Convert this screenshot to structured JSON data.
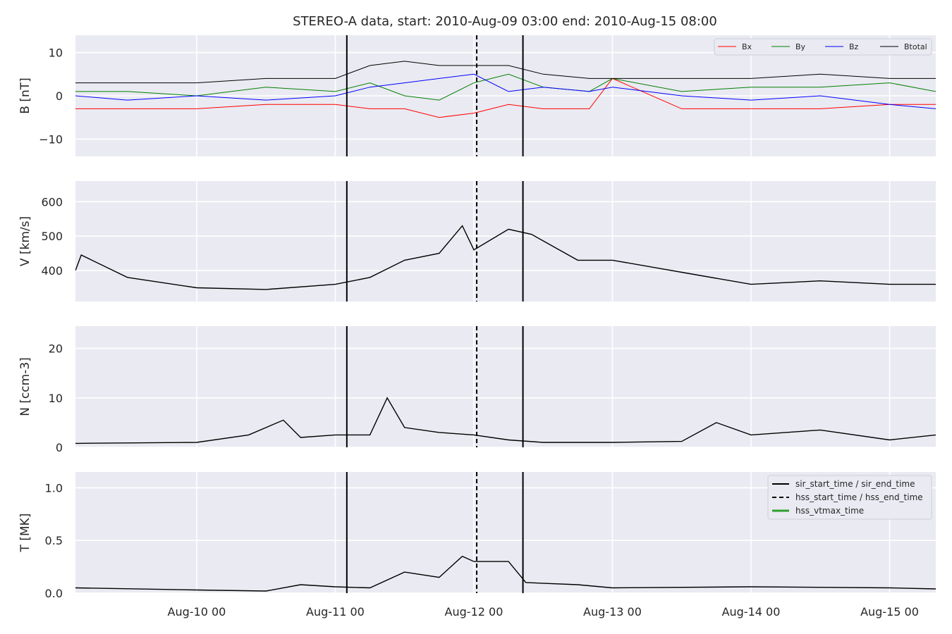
{
  "chart_data": {
    "type": "line",
    "title": "STEREO-A data, start: 2010-Aug-09 03:00  end: 2010-Aug-15 08:00",
    "x_range": [
      "2010-08-09 03:00",
      "2010-08-15 08:00"
    ],
    "x_tick_labels": [
      "Aug-10 00",
      "Aug-11 00",
      "Aug-12 00",
      "Aug-13 00",
      "Aug-14 00",
      "Aug-15 00"
    ],
    "x_ticks": [
      "2010-08-10 00:00",
      "2010-08-11 00:00",
      "2010-08-12 00:00",
      "2010-08-13 00:00",
      "2010-08-14 00:00",
      "2010-08-15 00:00"
    ],
    "grid": true,
    "vertical_markers": [
      {
        "time": "2010-08-11 02:00",
        "style": "solid",
        "legend": "sir_start_time / sir_end_time"
      },
      {
        "time": "2010-08-12 00:30",
        "style": "dashed",
        "legend": "hss_start_time / hss_end_time"
      },
      {
        "time": "2010-08-12 08:30",
        "style": "solid",
        "legend": "sir_start_time / sir_end_time"
      }
    ],
    "panels": [
      {
        "ylabel": "B [nT]",
        "ylim": [
          -14,
          14
        ],
        "yticks": [
          10,
          0,
          -10
        ],
        "ytick_labels": [
          "10",
          "0",
          "−10"
        ],
        "legend_position": "top-right",
        "series": [
          {
            "name": "Bx",
            "color": "#ff0000",
            "x": [
              "2010-08-09 03:00",
              "2010-08-09 12:00",
              "2010-08-10 00:00",
              "2010-08-10 12:00",
              "2010-08-11 00:00",
              "2010-08-11 06:00",
              "2010-08-11 12:00",
              "2010-08-11 18:00",
              "2010-08-12 00:00",
              "2010-08-12 06:00",
              "2010-08-12 12:00",
              "2010-08-12 20:00",
              "2010-08-13 00:00",
              "2010-08-13 12:00",
              "2010-08-14 00:00",
              "2010-08-14 12:00",
              "2010-08-15 00:00",
              "2010-08-15 08:00"
            ],
            "values": [
              -3,
              -3,
              -3,
              -2,
              -2,
              -3,
              -3,
              -5,
              -4,
              -2,
              -3,
              -3,
              4,
              -3,
              -3,
              -3,
              -2,
              -2
            ]
          },
          {
            "name": "By",
            "color": "#008000",
            "x": [
              "2010-08-09 03:00",
              "2010-08-09 12:00",
              "2010-08-10 00:00",
              "2010-08-10 12:00",
              "2010-08-11 00:00",
              "2010-08-11 06:00",
              "2010-08-11 12:00",
              "2010-08-11 18:00",
              "2010-08-12 00:00",
              "2010-08-12 06:00",
              "2010-08-12 12:00",
              "2010-08-12 20:00",
              "2010-08-13 00:00",
              "2010-08-13 12:00",
              "2010-08-14 00:00",
              "2010-08-14 12:00",
              "2010-08-15 00:00",
              "2010-08-15 08:00"
            ],
            "values": [
              1,
              1,
              0,
              2,
              1,
              3,
              0,
              -1,
              3,
              5,
              2,
              1,
              4,
              1,
              2,
              2,
              3,
              1
            ]
          },
          {
            "name": "Bz",
            "color": "#0000ff",
            "x": [
              "2010-08-09 03:00",
              "2010-08-09 12:00",
              "2010-08-10 00:00",
              "2010-08-10 12:00",
              "2010-08-11 00:00",
              "2010-08-11 06:00",
              "2010-08-11 12:00",
              "2010-08-11 18:00",
              "2010-08-12 00:00",
              "2010-08-12 06:00",
              "2010-08-12 12:00",
              "2010-08-12 20:00",
              "2010-08-13 00:00",
              "2010-08-13 12:00",
              "2010-08-14 00:00",
              "2010-08-14 12:00",
              "2010-08-15 00:00",
              "2010-08-15 08:00"
            ],
            "values": [
              0,
              -1,
              0,
              -1,
              0,
              2,
              3,
              4,
              5,
              1,
              2,
              1,
              2,
              0,
              -1,
              0,
              -2,
              -3
            ]
          },
          {
            "name": "Btotal",
            "color": "#000000",
            "x": [
              "2010-08-09 03:00",
              "2010-08-09 12:00",
              "2010-08-10 00:00",
              "2010-08-10 12:00",
              "2010-08-11 00:00",
              "2010-08-11 06:00",
              "2010-08-11 12:00",
              "2010-08-11 18:00",
              "2010-08-12 00:00",
              "2010-08-12 06:00",
              "2010-08-12 12:00",
              "2010-08-12 20:00",
              "2010-08-13 00:00",
              "2010-08-13 12:00",
              "2010-08-14 00:00",
              "2010-08-14 12:00",
              "2010-08-15 00:00",
              "2010-08-15 08:00"
            ],
            "values": [
              3,
              3,
              3,
              4,
              4,
              7,
              8,
              7,
              7,
              7,
              5,
              4,
              4,
              4,
              4,
              5,
              4,
              4
            ]
          }
        ]
      },
      {
        "ylabel": "V [km/s]",
        "ylim": [
          310,
          660
        ],
        "yticks": [
          400,
          500,
          600
        ],
        "ytick_labels": [
          "400",
          "500",
          "600"
        ],
        "series": [
          {
            "name": "",
            "color": "#000000",
            "x": [
              "2010-08-09 03:00",
              "2010-08-09 04:00",
              "2010-08-09 12:00",
              "2010-08-10 00:00",
              "2010-08-10 12:00",
              "2010-08-11 00:00",
              "2010-08-11 06:00",
              "2010-08-11 12:00",
              "2010-08-11 18:00",
              "2010-08-11 22:00",
              "2010-08-12 00:00",
              "2010-08-12 06:00",
              "2010-08-12 10:00",
              "2010-08-12 18:00",
              "2010-08-13 00:00",
              "2010-08-13 12:00",
              "2010-08-14 00:00",
              "2010-08-14 12:00",
              "2010-08-15 00:00",
              "2010-08-15 08:00"
            ],
            "values": [
              400,
              445,
              380,
              350,
              345,
              360,
              380,
              430,
              450,
              530,
              460,
              520,
              505,
              430,
              430,
              395,
              360,
              370,
              360,
              360
            ]
          }
        ]
      },
      {
        "ylabel": "N [ccm-3]",
        "ylim": [
          0,
          24.5
        ],
        "yticks": [
          0,
          10,
          20
        ],
        "ytick_labels": [
          "0",
          "10",
          "20"
        ],
        "series": [
          {
            "name": "",
            "color": "#000000",
            "x": [
              "2010-08-09 03:00",
              "2010-08-10 00:00",
              "2010-08-10 09:00",
              "2010-08-10 15:00",
              "2010-08-10 18:00",
              "2010-08-11 00:00",
              "2010-08-11 06:00",
              "2010-08-11 09:00",
              "2010-08-11 12:00",
              "2010-08-11 18:00",
              "2010-08-12 00:00",
              "2010-08-12 06:00",
              "2010-08-12 12:00",
              "2010-08-13 00:00",
              "2010-08-13 12:00",
              "2010-08-13 18:00",
              "2010-08-14 00:00",
              "2010-08-14 12:00",
              "2010-08-15 00:00",
              "2010-08-15 08:00"
            ],
            "values": [
              0.8,
              1.0,
              2.5,
              5.5,
              2.0,
              2.5,
              2.5,
              10,
              4,
              3,
              2.5,
              1.5,
              1.0,
              1.0,
              1.2,
              5,
              2.5,
              3.5,
              1.5,
              2.5
            ]
          }
        ]
      },
      {
        "ylabel": "T [MK]",
        "ylim": [
          0,
          1.15
        ],
        "yticks": [
          0.0,
          0.5,
          1.0
        ],
        "ytick_labels": [
          "0.0",
          "0.5",
          "1.0"
        ],
        "legend_position": "top-right",
        "legend": [
          {
            "label": "sir_start_time / sir_end_time",
            "color": "#000000",
            "style": "solid"
          },
          {
            "label": "hss_start_time / hss_end_time",
            "color": "#000000",
            "style": "dashed"
          },
          {
            "label": "hss_vtmax_time",
            "color": "#2ca02c",
            "style": "solid"
          }
        ],
        "series": [
          {
            "name": "",
            "color": "#000000",
            "x": [
              "2010-08-09 03:00",
              "2010-08-10 00:00",
              "2010-08-10 12:00",
              "2010-08-10 18:00",
              "2010-08-11 00:00",
              "2010-08-11 06:00",
              "2010-08-11 12:00",
              "2010-08-11 18:00",
              "2010-08-11 22:00",
              "2010-08-12 00:00",
              "2010-08-12 06:00",
              "2010-08-12 09:00",
              "2010-08-12 18:00",
              "2010-08-13 00:00",
              "2010-08-14 00:00",
              "2010-08-15 00:00",
              "2010-08-15 08:00"
            ],
            "values": [
              0.05,
              0.03,
              0.02,
              0.08,
              0.06,
              0.05,
              0.2,
              0.15,
              0.35,
              0.3,
              0.3,
              0.1,
              0.08,
              0.05,
              0.06,
              0.05,
              0.04
            ]
          }
        ]
      }
    ]
  }
}
